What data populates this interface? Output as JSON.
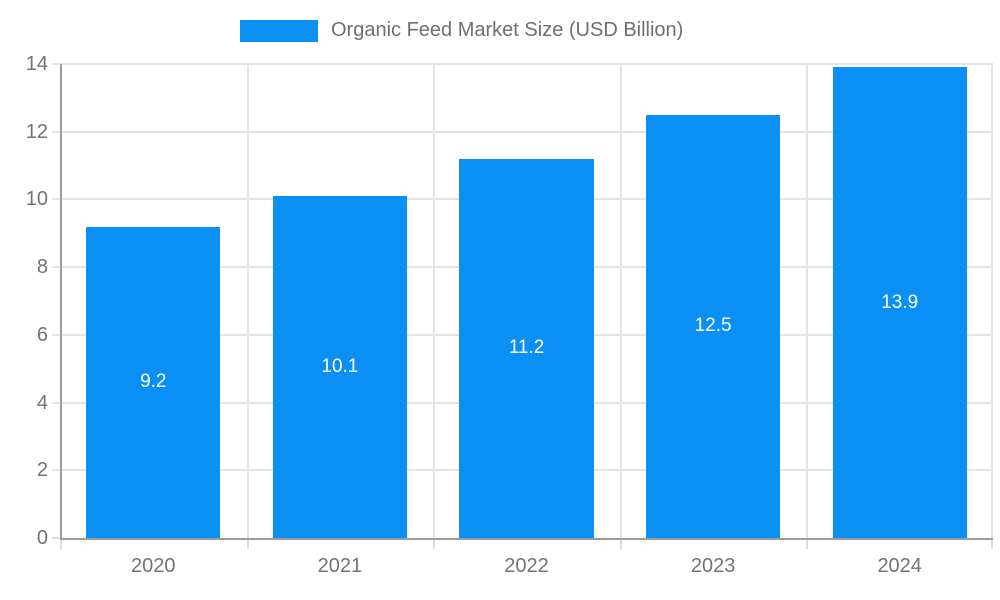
{
  "legend": {
    "position": "top",
    "label": "Organic Feed Market Size (USD Billion)"
  },
  "chart_data": {
    "type": "bar",
    "title": "Organic Feed Market Size (USD Billion)",
    "xlabel": "",
    "ylabel": "",
    "categories": [
      "2020",
      "2021",
      "2022",
      "2023",
      "2024"
    ],
    "values": [
      9.2,
      10.1,
      11.2,
      12.5,
      13.9
    ],
    "data_labels": [
      "9.2",
      "10.1",
      "11.2",
      "12.5",
      "13.9"
    ],
    "series": [
      {
        "name": "Organic Feed Market Size (USD Billion)",
        "values": [
          9.2,
          10.1,
          11.2,
          12.5,
          13.9
        ]
      }
    ],
    "ylim": [
      0,
      14
    ],
    "yticks": [
      0,
      2,
      4,
      6,
      8,
      10,
      12,
      14
    ],
    "grid": true,
    "legend_position": "top-center",
    "colors": {
      "bar": "#0A90F4",
      "bar_label_text": "#FFFFFF",
      "tick_text": "#737373",
      "legend_text": "#6F6F6F",
      "gridline": "#E4E4E4",
      "tick_mark": "#DCDCDC",
      "axis_line": "#9B9B9B",
      "background": "#FFFFFF"
    }
  }
}
